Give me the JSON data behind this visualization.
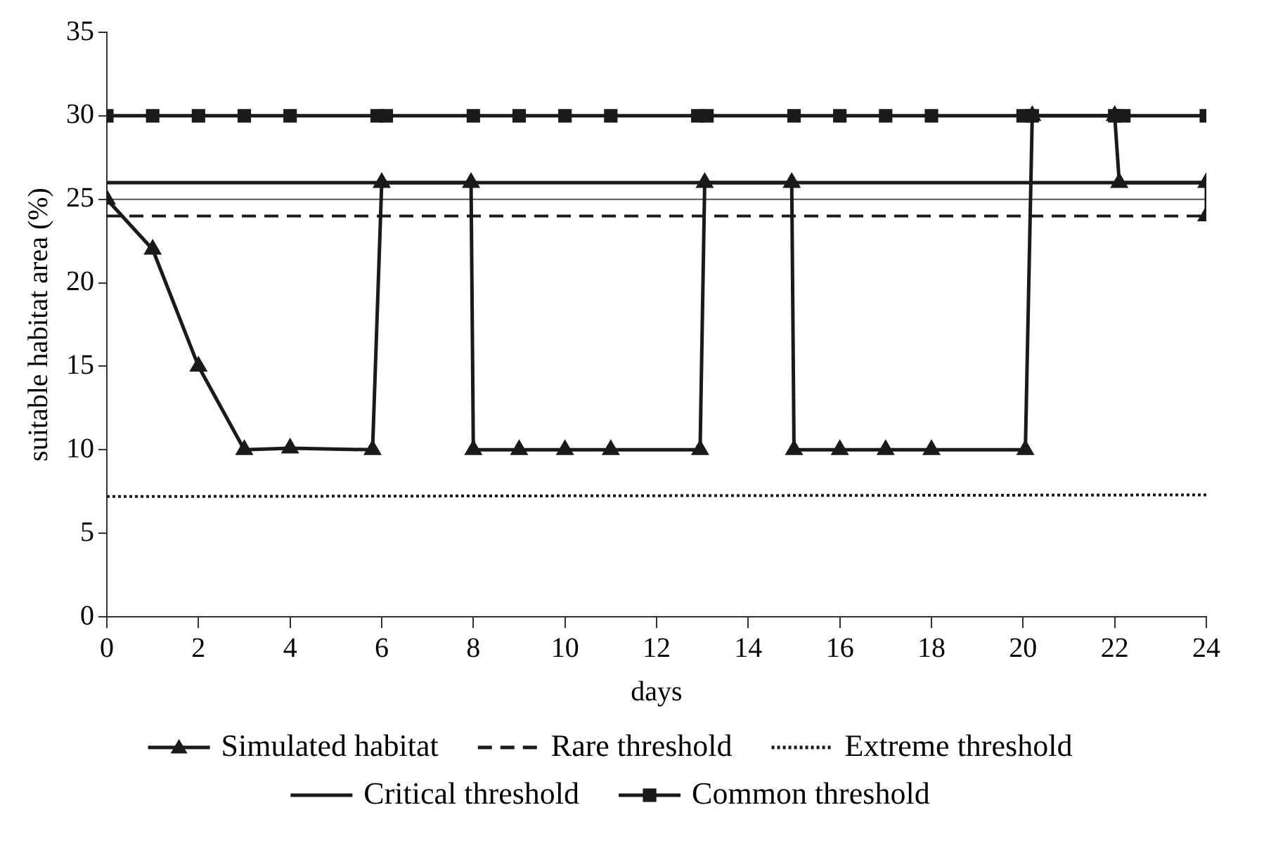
{
  "chart_data": {
    "type": "line",
    "xlabel": "days",
    "ylabel": "suitable habitat area (%)",
    "xlim": [
      0,
      24
    ],
    "xticks": [
      0,
      2,
      4,
      6,
      8,
      10,
      12,
      14,
      16,
      18,
      20,
      22,
      24
    ],
    "ylim": [
      0,
      35
    ],
    "yticks": [
      0,
      5,
      10,
      15,
      20,
      25,
      30,
      35
    ],
    "grid": false,
    "legend": "bottom",
    "ref_lines": [
      {
        "axis": "y",
        "value": 25,
        "color": "#555555"
      }
    ],
    "series": [
      {
        "name": "Simulated habitat",
        "color": "#1a1a1a",
        "marker": "triangle",
        "line_style": "solid",
        "x": [
          0,
          1,
          2,
          3,
          4,
          5.8,
          6,
          7.95,
          8,
          9,
          10,
          11,
          12.95,
          13.05,
          14.95,
          15,
          16,
          17,
          18,
          20.05,
          20.2,
          22,
          22.1,
          24,
          24
        ],
        "values": [
          25,
          22,
          15,
          10,
          10.1,
          10,
          26,
          26,
          10,
          10,
          10,
          10,
          10,
          26,
          26,
          10,
          10,
          10,
          10,
          10,
          30,
          30,
          26,
          26,
          24
        ]
      },
      {
        "name": "Rare threshold",
        "color": "#1a1a1a",
        "marker": "none",
        "line_style": "dashed",
        "x": [
          0,
          24
        ],
        "values": [
          24,
          24
        ]
      },
      {
        "name": "Extreme threshold",
        "color": "#1a1a1a",
        "marker": "none",
        "line_style": "dotted",
        "x": [
          0,
          24
        ],
        "values": [
          7.2,
          7.3
        ]
      },
      {
        "name": "Critical threshold",
        "color": "#1a1a1a",
        "marker": "none",
        "line_style": "solid",
        "x": [
          0,
          24
        ],
        "values": [
          26,
          26
        ]
      },
      {
        "name": "Common threshold",
        "color": "#1a1a1a",
        "marker": "square",
        "line_style": "solid",
        "x": [
          0,
          1,
          2,
          3,
          4,
          5.9,
          6.1,
          8,
          9,
          10,
          11,
          12.9,
          13.1,
          15,
          16,
          17,
          18,
          20,
          20.2,
          22,
          22.2,
          24
        ],
        "values": [
          30,
          30,
          30,
          30,
          30,
          30,
          30,
          30,
          30,
          30,
          30,
          30,
          30,
          30,
          30,
          30,
          30,
          30,
          30,
          30,
          30,
          30
        ]
      }
    ]
  }
}
